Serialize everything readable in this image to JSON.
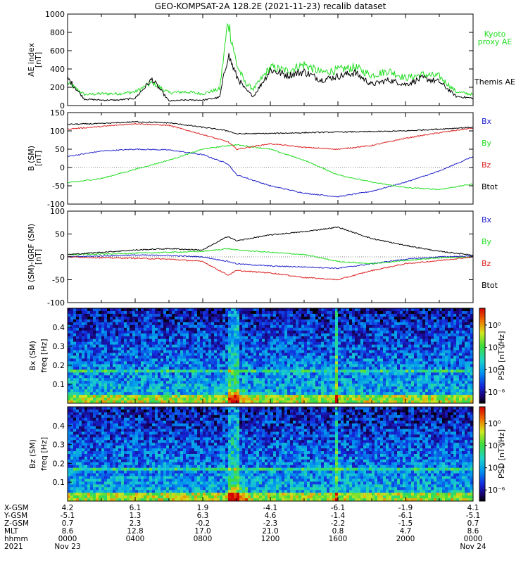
{
  "title": "GEO-KOMPSAT-2A 128.2E (2021-11-23) recalib dataset",
  "colors": {
    "black": "#000000",
    "green": "#22dd22",
    "red": "#dd2222",
    "blue": "#2222cc",
    "bg": "#ffffff"
  },
  "chart_data": [
    {
      "type": "line",
      "panel": "AE index",
      "ylabel_top": "AE index",
      "ylabel_unit": "[nT]",
      "ylim": [
        0,
        1000
      ],
      "yticks": [
        "0",
        "200",
        "400",
        "600",
        "800",
        "1000"
      ],
      "x_hours": [
        0,
        1,
        2,
        3,
        4,
        5,
        6,
        7,
        8,
        9,
        9.5,
        10,
        10.5,
        11,
        12,
        13,
        14,
        15,
        16,
        17,
        18,
        19,
        20,
        21,
        22,
        23,
        24
      ],
      "series": [
        {
          "name": "Kyoto proxy AE",
          "legend": [
            "Kyoto",
            "proxy AE"
          ],
          "color": "green",
          "values": [
            250,
            120,
            130,
            130,
            150,
            250,
            140,
            150,
            130,
            180,
            930,
            450,
            250,
            180,
            420,
            380,
            450,
            360,
            390,
            420,
            330,
            380,
            300,
            340,
            320,
            150,
            120
          ]
        },
        {
          "name": "Themis AE",
          "legend": [
            "Themis AE"
          ],
          "color": "black",
          "values": [
            300,
            70,
            60,
            60,
            80,
            290,
            50,
            60,
            60,
            90,
            560,
            320,
            180,
            100,
            390,
            330,
            370,
            280,
            320,
            360,
            230,
            280,
            230,
            300,
            260,
            100,
            80
          ]
        }
      ]
    },
    {
      "type": "line",
      "panel": "B (SM)",
      "ylabel_top": "B (SM)",
      "ylabel_unit": "[nT]",
      "ylim": [
        -100,
        150
      ],
      "yticks": [
        "-100",
        "-50",
        "0",
        "50",
        "100",
        "150"
      ],
      "x_hours": [
        0,
        2,
        4,
        6,
        8,
        9.5,
        10,
        12,
        14,
        16,
        18,
        20,
        22,
        24
      ],
      "series": [
        {
          "name": "Bx",
          "color": "blue",
          "values": [
            30,
            45,
            50,
            48,
            35,
            10,
            -20,
            -50,
            -70,
            -80,
            -65,
            -40,
            -10,
            30
          ]
        },
        {
          "name": "By",
          "color": "green",
          "values": [
            -42,
            -30,
            -5,
            20,
            50,
            60,
            62,
            50,
            20,
            -20,
            -40,
            -55,
            -60,
            -45
          ]
        },
        {
          "name": "Bz",
          "color": "red",
          "values": [
            105,
            112,
            120,
            115,
            90,
            70,
            50,
            65,
            55,
            50,
            60,
            80,
            95,
            108
          ]
        },
        {
          "name": "Btot",
          "color": "black",
          "values": [
            118,
            120,
            125,
            122,
            110,
            100,
            92,
            93,
            95,
            97,
            98,
            100,
            105,
            110
          ]
        }
      ]
    },
    {
      "type": "line",
      "panel": "B (SM)-IGRF (SM)",
      "ylabel_top": "B (SM)-IGRF (SM)",
      "ylabel_unit": "[nT]",
      "ylim": [
        -100,
        100
      ],
      "yticks": [
        "-100",
        "-50",
        "0",
        "50",
        "100"
      ],
      "x_hours": [
        0,
        2,
        4,
        6,
        8,
        9.5,
        10,
        12,
        14,
        16,
        18,
        20,
        22,
        24
      ],
      "series": [
        {
          "name": "Bx",
          "color": "blue",
          "values": [
            0,
            2,
            4,
            3,
            0,
            -10,
            -15,
            -20,
            -22,
            -25,
            -15,
            -5,
            0,
            2
          ]
        },
        {
          "name": "By",
          "color": "green",
          "values": [
            5,
            6,
            8,
            10,
            12,
            18,
            15,
            10,
            5,
            -10,
            -15,
            -8,
            -2,
            0
          ]
        },
        {
          "name": "Bz",
          "color": "red",
          "values": [
            0,
            -2,
            -3,
            -5,
            -10,
            -40,
            -30,
            -35,
            -45,
            -50,
            -30,
            -15,
            -8,
            0
          ]
        },
        {
          "name": "Btot",
          "color": "black",
          "values": [
            5,
            10,
            15,
            18,
            15,
            45,
            35,
            48,
            55,
            65,
            40,
            25,
            12,
            4
          ]
        }
      ]
    },
    {
      "type": "heatmap",
      "panel": "Bx (SM) spectrogram",
      "ylabel_top": "Bx (SM)",
      "ylabel_sub": "freq [Hz]",
      "ylim": [
        0,
        0.5
      ],
      "yticks": [
        "0.1",
        "0.2",
        "0.3",
        "0.4"
      ],
      "colorbar_label": "PSD [nT²/Hz]",
      "colorbar_ticks": [
        "10⁰",
        "10⁻²",
        "10⁻⁴",
        "10⁻⁶"
      ],
      "colorbar_exponents": [
        0,
        -2,
        -4,
        -6
      ],
      "zlim_log10": [
        -7,
        1.5
      ]
    },
    {
      "type": "heatmap",
      "panel": "Bz (SM) spectrogram",
      "ylabel_top": "Bz (SM)",
      "ylabel_sub": "freq [Hz]",
      "ylim": [
        0,
        0.5
      ],
      "yticks": [
        "0.1",
        "0.2",
        "0.3",
        "0.4"
      ],
      "colorbar_label": "PSD [nT²/Hz]",
      "colorbar_ticks": [
        "10⁰",
        "10⁻²",
        "10⁻⁴",
        "10⁻⁶"
      ],
      "colorbar_exponents": [
        0,
        -2,
        -4,
        -6
      ],
      "zlim_log10": [
        -7,
        1.5
      ]
    }
  ],
  "ephemeris": {
    "labels": [
      "X-GSM",
      "Y-GSM",
      "Z-GSM",
      "MLT",
      "hhmm",
      "2021"
    ],
    "hours": [
      0,
      4,
      8,
      12,
      16,
      20,
      24
    ],
    "rows": [
      [
        "4.2",
        "6.1",
        "1.9",
        "-4.1",
        "-6.1",
        "-1.9",
        "4.1"
      ],
      [
        "-5.1",
        "1.3",
        "6.3",
        "4.6",
        "-1.4",
        "-6.1",
        "-5.1"
      ],
      [
        "0.7",
        "2.3",
        "-0.2",
        "-2.3",
        "-2.2",
        "-1.5",
        "0.7"
      ],
      [
        "8.6",
        "12.8",
        "17.0",
        "21.0",
        "0.8",
        "4.7",
        "8.6"
      ],
      [
        "0000",
        "0400",
        "0800",
        "1200",
        "1600",
        "2000",
        "0000"
      ],
      [
        "Nov 23",
        "",
        "",
        "",
        "",
        "",
        "Nov 24"
      ]
    ]
  }
}
